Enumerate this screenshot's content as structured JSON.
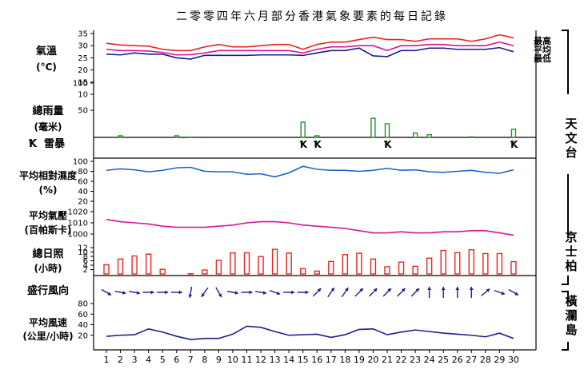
{
  "title": "二零零四年六月部分香港氣象要素的每日記錄",
  "colors": {
    "max_temp": "#e8241f",
    "mean_temp": "#d6149a",
    "min_temp": "#1a1f8c",
    "rain": "#2a8a2a",
    "humidity": "#1a5fd0",
    "pressure": "#d6149a",
    "sunshine": "#e8241f",
    "wind": "#1a1f8c",
    "axis": "#000000"
  },
  "station_labels": {
    "observatory": "天文台",
    "kings_park": "京士柏",
    "waglan": "橫瀾島"
  },
  "panels": {
    "temperature": {
      "label1": "氣溫",
      "label2": "(°C)",
      "ticks": [
        "35",
        "30",
        "25",
        "20",
        "15",
        "10"
      ],
      "legend_max": "最高",
      "legend_mean": "平均",
      "legend_min": "最低"
    },
    "rainfall": {
      "label1": "總雨量",
      "label2": "(毫米)",
      "ticks": [
        "100",
        "50"
      ]
    },
    "thunder": {
      "label": "雷暴",
      "symbol": "Ꝁ"
    },
    "humidity": {
      "label1": "平均相對濕度",
      "label2": "(%)",
      "ticks": [
        "100",
        "80",
        "60",
        "40",
        "20"
      ]
    },
    "pressure": {
      "label1": "平均氣壓",
      "label2": "(百帕斯卡)",
      "ticks": [
        "1020",
        "1010",
        "1000"
      ]
    },
    "sunshine": {
      "label1": "總日照",
      "label2": "(小時)",
      "ticks": [
        "12",
        "10",
        "8",
        "6",
        "4",
        "2"
      ]
    },
    "wind_dir": {
      "label": "盛行風向"
    },
    "wind_speed": {
      "label1": "平均風速",
      "label2": "(公里/小時)",
      "ticks": [
        "80",
        "60",
        "40",
        "20"
      ]
    }
  },
  "chart_data": {
    "type": "line",
    "title": "二零零四年六月部分香港氣象要素的每日記錄",
    "x": [
      1,
      2,
      3,
      4,
      5,
      6,
      7,
      8,
      9,
      10,
      11,
      12,
      13,
      14,
      15,
      16,
      17,
      18,
      19,
      20,
      21,
      22,
      23,
      24,
      25,
      26,
      27,
      28,
      29,
      30
    ],
    "xlabel": "",
    "series": [
      {
        "name": "最高",
        "panel": "temperature",
        "ylim": [
          10,
          35
        ],
        "values": [
          31,
          30.3,
          30,
          29.8,
          28.5,
          28,
          28,
          29.5,
          30.5,
          29.5,
          29.5,
          30,
          30.5,
          30.5,
          28.5,
          30.5,
          31.5,
          31.5,
          32.5,
          33.5,
          32.5,
          32.5,
          31.8,
          32.8,
          32.8,
          32.8,
          31.8,
          32.8,
          34.5,
          33.2
        ]
      },
      {
        "name": "平均",
        "panel": "temperature",
        "ylim": [
          10,
          35
        ],
        "values": [
          28.5,
          28,
          28,
          27.8,
          27.2,
          26.2,
          26.3,
          27,
          28,
          28,
          28,
          28,
          28,
          28,
          27,
          28.5,
          29.5,
          29.5,
          30,
          30,
          28,
          30,
          30,
          30.5,
          30.5,
          30,
          30,
          30,
          31.5,
          30
        ]
      },
      {
        "name": "最低",
        "panel": "temperature",
        "ylim": [
          10,
          35
        ],
        "values": [
          26.5,
          26.2,
          27,
          26.5,
          26.5,
          25,
          24.5,
          26,
          26,
          26,
          26,
          26.2,
          26.2,
          26.2,
          26,
          27,
          28,
          28,
          29,
          25.8,
          25.5,
          28,
          28,
          29,
          29,
          28.5,
          28.5,
          28.5,
          29.2,
          27.5
        ]
      },
      {
        "name": "總雨量",
        "panel": "rainfall",
        "kind": "bar",
        "ylim": [
          0,
          100
        ],
        "values": [
          0,
          3,
          0,
          0,
          0,
          3,
          0.5,
          0,
          0,
          0,
          0,
          0,
          0,
          0,
          28,
          3,
          0,
          0,
          0,
          35,
          25,
          0,
          8,
          5,
          0,
          0,
          1,
          0,
          0,
          15
        ]
      },
      {
        "name": "雷暴",
        "panel": "thunder",
        "kind": "marker",
        "days": [
          15,
          16,
          21,
          30
        ]
      },
      {
        "name": "平均相對濕度",
        "panel": "humidity",
        "ylim": [
          20,
          100
        ],
        "values": [
          82,
          85,
          83,
          79,
          82,
          87,
          88,
          80,
          79,
          79,
          74,
          75,
          69,
          77,
          90,
          84,
          82,
          82,
          80,
          82,
          86,
          82,
          83,
          79,
          78,
          80,
          82,
          78,
          76,
          83
        ]
      },
      {
        "name": "平均氣壓",
        "panel": "pressure",
        "ylim": [
          995,
          1025
        ],
        "values": [
          1013,
          1011,
          1010,
          1009,
          1007,
          1006,
          1006,
          1006,
          1007,
          1008,
          1010,
          1011,
          1011,
          1010,
          1008,
          1007,
          1006,
          1005,
          1003,
          1001,
          1001,
          1002,
          1001,
          1001,
          1002,
          1002,
          1003,
          1003,
          1001,
          999
        ]
      },
      {
        "name": "總日照",
        "panel": "sunshine",
        "kind": "bar",
        "ylim": [
          0,
          12
        ],
        "values": [
          4.2,
          6.8,
          8.2,
          9,
          2.1,
          0,
          0.1,
          1.8,
          6.2,
          9.6,
          9.6,
          7.9,
          11.2,
          9.5,
          2.4,
          1.3,
          5.7,
          8.8,
          9.4,
          6.8,
          3.3,
          5.4,
          3.5,
          7.2,
          10.7,
          9.7,
          11,
          9.3,
          9.3,
          5.6
        ]
      },
      {
        "name": "平均風速",
        "panel": "wind_speed",
        "ylim": [
          0,
          80
        ],
        "values": [
          18,
          20,
          21,
          32,
          26,
          18,
          12,
          14,
          14,
          22,
          37,
          35,
          27,
          20,
          21,
          22,
          16,
          21,
          31,
          32,
          21,
          26,
          30,
          27,
          24,
          22,
          20,
          17,
          24,
          14
        ]
      }
    ],
    "wind_direction_deg": [
      300,
      280,
      280,
      270,
      270,
      270,
      10,
      35,
      330,
      280,
      270,
      280,
      290,
      270,
      270,
      225,
      215,
      215,
      225,
      225,
      225,
      225,
      225,
      180,
      180,
      180,
      180,
      230,
      290,
      300
    ]
  }
}
